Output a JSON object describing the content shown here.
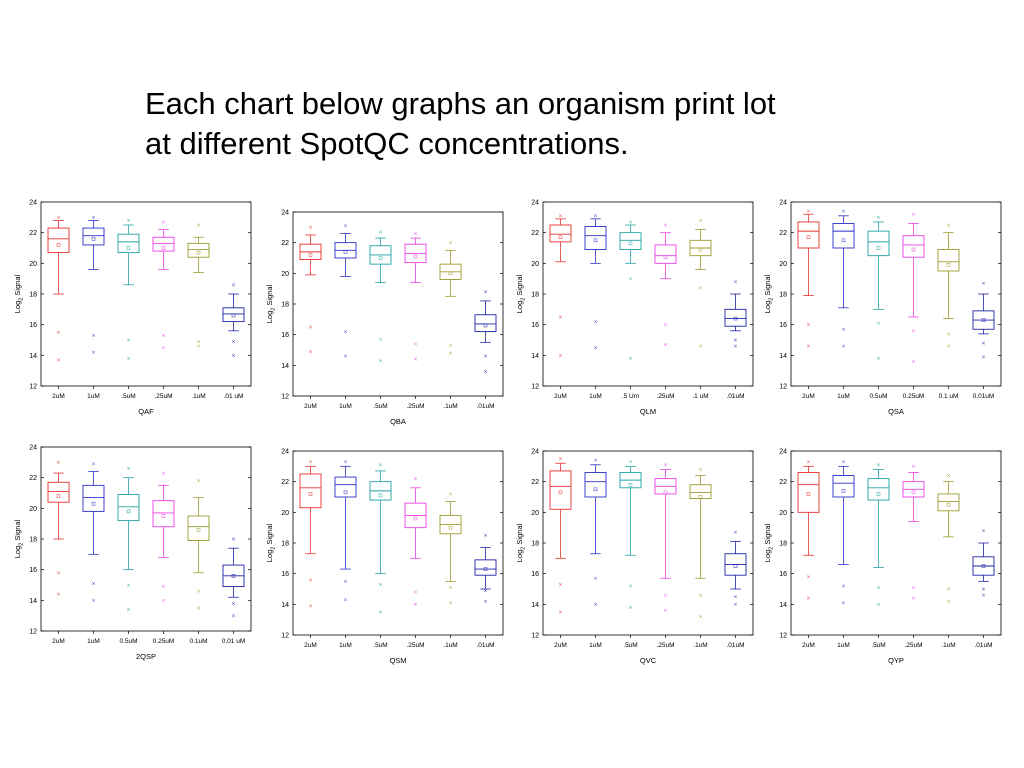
{
  "header": {
    "line1": "Each chart below graphs an organism print lot",
    "line2": "at different SpotQC concentrations."
  },
  "chart_data": [
    {
      "type": "box",
      "name": "QAF",
      "ylabel": "Log2 Signal",
      "ylim": [
        12,
        24
      ],
      "yticks": [
        12,
        14,
        16,
        18,
        20,
        22,
        24
      ],
      "categories": [
        "2uM",
        "1uM",
        ".5uM",
        ".25uM",
        ".1uM",
        ".01 uM"
      ],
      "boxes": [
        {
          "whislo": 18.0,
          "q1": 20.7,
          "med": 21.6,
          "q3": 22.3,
          "whishi": 22.8,
          "mean": 21.2,
          "fliers": [
            23.0,
            15.5,
            13.7
          ]
        },
        {
          "whislo": 19.6,
          "q1": 21.2,
          "med": 21.8,
          "q3": 22.3,
          "whishi": 22.8,
          "mean": 21.6,
          "fliers": [
            23.0,
            15.3,
            14.2
          ]
        },
        {
          "whislo": 18.6,
          "q1": 20.7,
          "med": 21.4,
          "q3": 21.9,
          "whishi": 22.5,
          "mean": 21.0,
          "fliers": [
            22.8,
            15.0,
            13.8
          ]
        },
        {
          "whislo": 19.6,
          "q1": 20.8,
          "med": 21.3,
          "q3": 21.7,
          "whishi": 22.2,
          "mean": 21.0,
          "fliers": [
            22.7,
            15.3,
            14.5
          ]
        },
        {
          "whislo": 19.4,
          "q1": 20.4,
          "med": 20.9,
          "q3": 21.3,
          "whishi": 21.7,
          "mean": 20.7,
          "fliers": [
            22.5,
            14.9,
            14.6
          ]
        },
        {
          "whislo": 15.6,
          "q1": 16.2,
          "med": 16.7,
          "q3": 17.1,
          "whishi": 18.0,
          "mean": 16.6,
          "fliers": [
            18.6,
            14.9,
            14.0
          ]
        }
      ]
    },
    {
      "type": "box",
      "name": "QBA",
      "ylabel": "Log2 Signal",
      "ylim": [
        12,
        24
      ],
      "yticks": [
        12,
        14,
        16,
        18,
        20,
        22,
        24
      ],
      "categories": [
        "2uM",
        "1uM",
        ".5uM",
        ".25uM",
        ".1uM",
        ".01uM"
      ],
      "boxes": [
        {
          "whislo": 19.9,
          "q1": 20.9,
          "med": 21.4,
          "q3": 21.9,
          "whishi": 22.5,
          "mean": 21.2,
          "fliers": [
            23.0,
            16.5,
            14.9
          ]
        },
        {
          "whislo": 19.8,
          "q1": 21.0,
          "med": 21.5,
          "q3": 22.0,
          "whishi": 22.6,
          "mean": 21.4,
          "fliers": [
            23.1,
            16.2,
            14.6
          ]
        },
        {
          "whislo": 19.4,
          "q1": 20.6,
          "med": 21.2,
          "q3": 21.8,
          "whishi": 22.3,
          "mean": 21.0,
          "fliers": [
            22.7,
            15.7,
            14.3
          ]
        },
        {
          "whislo": 19.4,
          "q1": 20.7,
          "med": 21.3,
          "q3": 21.9,
          "whishi": 22.3,
          "mean": 21.1,
          "fliers": [
            22.6,
            15.4,
            14.4
          ]
        },
        {
          "whislo": 18.5,
          "q1": 19.6,
          "med": 20.1,
          "q3": 20.6,
          "whishi": 21.5,
          "mean": 20.0,
          "fliers": [
            22.0,
            15.3,
            14.8
          ]
        },
        {
          "whislo": 15.5,
          "q1": 16.2,
          "med": 16.7,
          "q3": 17.3,
          "whishi": 18.2,
          "mean": 16.6,
          "fliers": [
            18.8,
            14.6,
            13.6
          ]
        }
      ]
    },
    {
      "type": "box",
      "name": "QLM",
      "ylabel": "Log2 Signal",
      "ylim": [
        12,
        24
      ],
      "yticks": [
        12,
        14,
        16,
        18,
        20,
        22,
        24
      ],
      "categories": [
        "2uM",
        "1uM",
        ".5 Um",
        ".25uM",
        ".1 uM",
        ".01uM"
      ],
      "boxes": [
        {
          "whislo": 20.1,
          "q1": 21.4,
          "med": 21.9,
          "q3": 22.5,
          "whishi": 22.9,
          "mean": 21.7,
          "fliers": [
            23.1,
            16.5,
            14.0
          ]
        },
        {
          "whislo": 20.0,
          "q1": 20.9,
          "med": 21.8,
          "q3": 22.4,
          "whishi": 22.9,
          "mean": 21.5,
          "fliers": [
            23.1,
            16.2,
            14.5
          ]
        },
        {
          "whislo": 20.0,
          "q1": 20.9,
          "med": 21.5,
          "q3": 22.0,
          "whishi": 22.5,
          "mean": 21.3,
          "fliers": [
            22.7,
            19.0,
            13.8
          ]
        },
        {
          "whislo": 19.0,
          "q1": 20.0,
          "med": 20.5,
          "q3": 21.2,
          "whishi": 22.0,
          "mean": 20.4,
          "fliers": [
            22.5,
            16.0,
            14.7
          ]
        },
        {
          "whislo": 19.6,
          "q1": 20.5,
          "med": 21.0,
          "q3": 21.5,
          "whishi": 22.2,
          "mean": 20.9,
          "fliers": [
            22.8,
            18.4,
            14.6
          ]
        },
        {
          "whislo": 15.6,
          "q1": 15.9,
          "med": 16.4,
          "q3": 17.0,
          "whishi": 18.0,
          "mean": 16.4,
          "fliers": [
            18.8,
            15.0,
            14.6
          ]
        }
      ]
    },
    {
      "type": "box",
      "name": "QSA",
      "ylabel": "Log2 Signal",
      "ylim": [
        12,
        24
      ],
      "yticks": [
        12,
        14,
        16,
        18,
        20,
        22,
        24
      ],
      "categories": [
        "2uM",
        "1uM",
        "0.5uM",
        "0.25uM",
        "0.1 uM",
        "0.01uM"
      ],
      "boxes": [
        {
          "whislo": 17.9,
          "q1": 21.0,
          "med": 22.1,
          "q3": 22.7,
          "whishi": 23.2,
          "mean": 21.7,
          "fliers": [
            23.4,
            16.0,
            14.6
          ]
        },
        {
          "whislo": 17.1,
          "q1": 21.0,
          "med": 22.1,
          "q3": 22.6,
          "whishi": 23.1,
          "mean": 21.5,
          "fliers": [
            23.4,
            15.7,
            14.6
          ]
        },
        {
          "whislo": 17.0,
          "q1": 20.5,
          "med": 21.4,
          "q3": 22.1,
          "whishi": 22.7,
          "mean": 21.0,
          "fliers": [
            23.0,
            16.1,
            13.8
          ]
        },
        {
          "whislo": 16.5,
          "q1": 20.4,
          "med": 21.2,
          "q3": 21.8,
          "whishi": 22.6,
          "mean": 20.9,
          "fliers": [
            23.2,
            15.6,
            13.6
          ]
        },
        {
          "whislo": 16.4,
          "q1": 19.5,
          "med": 20.1,
          "q3": 20.9,
          "whishi": 22.0,
          "mean": 19.9,
          "fliers": [
            22.5,
            15.4,
            14.6
          ]
        },
        {
          "whislo": 15.4,
          "q1": 15.7,
          "med": 16.3,
          "q3": 16.9,
          "whishi": 18.0,
          "mean": 16.3,
          "fliers": [
            18.7,
            14.8,
            13.9
          ]
        }
      ]
    },
    {
      "type": "box",
      "name": "2QSP",
      "ylabel": "Log2 Signal",
      "ylim": [
        12,
        24
      ],
      "yticks": [
        12,
        14,
        16,
        18,
        20,
        22,
        24
      ],
      "categories": [
        "2uM",
        "1uM",
        "0.5uM",
        "0.25uM",
        "0.1uM",
        "0.01 uM"
      ],
      "boxes": [
        {
          "whislo": 18.0,
          "q1": 20.4,
          "med": 21.1,
          "q3": 21.7,
          "whishi": 22.3,
          "mean": 20.8,
          "fliers": [
            23.0,
            15.8,
            14.4
          ]
        },
        {
          "whislo": 17.0,
          "q1": 19.8,
          "med": 20.7,
          "q3": 21.5,
          "whishi": 22.4,
          "mean": 20.3,
          "fliers": [
            22.9,
            15.1,
            14.0
          ]
        },
        {
          "whislo": 16.0,
          "q1": 19.2,
          "med": 20.1,
          "q3": 20.9,
          "whishi": 22.0,
          "mean": 19.8,
          "fliers": [
            22.6,
            15.0,
            13.4
          ]
        },
        {
          "whislo": 16.8,
          "q1": 18.8,
          "med": 19.7,
          "q3": 20.5,
          "whishi": 21.5,
          "mean": 19.5,
          "fliers": [
            22.3,
            14.9,
            14.0
          ]
        },
        {
          "whislo": 15.8,
          "q1": 17.9,
          "med": 18.8,
          "q3": 19.5,
          "whishi": 20.7,
          "mean": 18.6,
          "fliers": [
            21.8,
            14.6,
            13.5
          ]
        },
        {
          "whislo": 14.2,
          "q1": 14.9,
          "med": 15.6,
          "q3": 16.3,
          "whishi": 17.4,
          "mean": 15.6,
          "fliers": [
            18.0,
            13.8,
            13.0
          ]
        }
      ]
    },
    {
      "type": "box",
      "name": "QSM",
      "ylabel": "Log2 Signal",
      "ylim": [
        12,
        24
      ],
      "yticks": [
        12,
        14,
        16,
        18,
        20,
        22,
        24
      ],
      "categories": [
        "2uM",
        "1uM",
        ".5uM",
        ".25uM",
        ".1uM",
        ".01uM"
      ],
      "boxes": [
        {
          "whislo": 17.3,
          "q1": 20.3,
          "med": 21.6,
          "q3": 22.5,
          "whishi": 23.0,
          "mean": 21.2,
          "fliers": [
            23.3,
            15.6,
            13.9
          ]
        },
        {
          "whislo": 16.3,
          "q1": 21.0,
          "med": 21.8,
          "q3": 22.3,
          "whishi": 23.0,
          "mean": 21.3,
          "fliers": [
            23.3,
            15.5,
            14.3
          ]
        },
        {
          "whislo": 16.0,
          "q1": 20.8,
          "med": 21.4,
          "q3": 22.0,
          "whishi": 22.7,
          "mean": 21.1,
          "fliers": [
            23.1,
            15.3,
            13.5
          ]
        },
        {
          "whislo": 17.0,
          "q1": 19.0,
          "med": 19.8,
          "q3": 20.6,
          "whishi": 21.6,
          "mean": 19.6,
          "fliers": [
            22.2,
            14.8,
            14.0
          ]
        },
        {
          "whislo": 15.5,
          "q1": 18.6,
          "med": 19.2,
          "q3": 19.8,
          "whishi": 20.7,
          "mean": 19.0,
          "fliers": [
            21.2,
            15.1,
            14.1
          ]
        },
        {
          "whislo": 15.0,
          "q1": 15.9,
          "med": 16.3,
          "q3": 16.9,
          "whishi": 17.7,
          "mean": 16.3,
          "fliers": [
            18.5,
            14.9,
            14.2
          ]
        }
      ]
    },
    {
      "type": "box",
      "name": "QVC",
      "ylabel": "Log2 Signal",
      "ylim": [
        12,
        24
      ],
      "yticks": [
        12,
        14,
        16,
        18,
        20,
        22,
        24
      ],
      "categories": [
        "2uM",
        "1uM",
        ".5uM",
        ".25uM",
        ".1uM",
        ".01uM"
      ],
      "boxes": [
        {
          "whislo": 17.0,
          "q1": 20.2,
          "med": 21.7,
          "q3": 22.7,
          "whishi": 23.2,
          "mean": 21.3,
          "fliers": [
            23.5,
            15.3,
            13.5
          ]
        },
        {
          "whislo": 17.3,
          "q1": 21.0,
          "med": 22.0,
          "q3": 22.6,
          "whishi": 23.1,
          "mean": 21.5,
          "fliers": [
            23.4,
            15.7,
            14.0
          ]
        },
        {
          "whislo": 17.2,
          "q1": 21.6,
          "med": 22.1,
          "q3": 22.6,
          "whishi": 23.0,
          "mean": 21.8,
          "fliers": [
            23.3,
            15.2,
            13.8
          ]
        },
        {
          "whislo": 15.7,
          "q1": 21.2,
          "med": 21.7,
          "q3": 22.2,
          "whishi": 22.8,
          "mean": 21.3,
          "fliers": [
            23.1,
            14.6,
            13.6
          ]
        },
        {
          "whislo": 15.7,
          "q1": 20.9,
          "med": 21.3,
          "q3": 21.8,
          "whishi": 22.4,
          "mean": 21.0,
          "fliers": [
            22.8,
            14.6,
            13.2
          ]
        },
        {
          "whislo": 15.0,
          "q1": 15.9,
          "med": 16.6,
          "q3": 17.3,
          "whishi": 18.1,
          "mean": 16.5,
          "fliers": [
            18.7,
            14.5,
            14.0
          ]
        }
      ]
    },
    {
      "type": "box",
      "name": "QYP",
      "ylabel": "Log2 Signal",
      "ylim": [
        12,
        24
      ],
      "yticks": [
        12,
        14,
        16,
        18,
        20,
        22,
        24
      ],
      "categories": [
        "2uM",
        "1uM",
        ".5uM",
        ".25uM",
        ".1uM",
        ".01uM"
      ],
      "boxes": [
        {
          "whislo": 17.2,
          "q1": 20.0,
          "med": 21.8,
          "q3": 22.6,
          "whishi": 23.0,
          "mean": 21.2,
          "fliers": [
            23.3,
            15.8,
            14.4
          ]
        },
        {
          "whislo": 16.6,
          "q1": 21.0,
          "med": 21.9,
          "q3": 22.4,
          "whishi": 23.0,
          "mean": 21.4,
          "fliers": [
            23.3,
            15.2,
            14.1
          ]
        },
        {
          "whislo": 16.4,
          "q1": 20.8,
          "med": 21.6,
          "q3": 22.2,
          "whishi": 22.8,
          "mean": 21.2,
          "fliers": [
            23.1,
            15.1,
            14.0
          ]
        },
        {
          "whislo": 19.4,
          "q1": 21.0,
          "med": 21.5,
          "q3": 22.0,
          "whishi": 22.6,
          "mean": 21.3,
          "fliers": [
            23.0,
            15.1,
            14.4
          ]
        },
        {
          "whislo": 18.4,
          "q1": 20.1,
          "med": 20.7,
          "q3": 21.2,
          "whishi": 22.0,
          "mean": 20.5,
          "fliers": [
            22.4,
            15.0,
            14.2
          ]
        },
        {
          "whislo": 15.5,
          "q1": 15.9,
          "med": 16.5,
          "q3": 17.1,
          "whishi": 18.0,
          "mean": 16.5,
          "fliers": [
            18.8,
            15.0,
            14.6
          ]
        }
      ]
    }
  ],
  "colors": {
    "series": [
      "#e8302d",
      "#2b2fc8",
      "#21a2a6",
      "#ea3fe6",
      "#9c9a2e",
      "#1d22a8"
    ],
    "axis": "#000000"
  }
}
